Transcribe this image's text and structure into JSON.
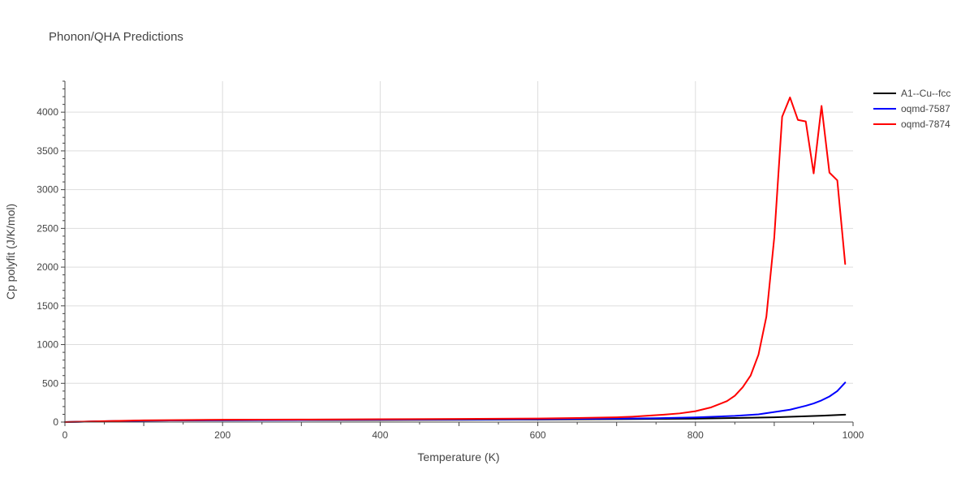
{
  "chart_data": {
    "type": "line",
    "title": "Phonon/QHA Predictions",
    "xlabel": "Temperature (K)",
    "ylabel": "Cp polyfit (J/K/mol)",
    "xlim": [
      0,
      1000
    ],
    "ylim": [
      0,
      4400
    ],
    "x_ticks": [
      0,
      200,
      400,
      600,
      800,
      1000
    ],
    "y_ticks": [
      0,
      500,
      1000,
      1500,
      2000,
      2500,
      3000,
      3500,
      4000
    ],
    "grid": true,
    "legend_position": "top-right",
    "series": [
      {
        "name": "A1--Cu--fcc",
        "color": "#000000",
        "x": [
          0,
          50,
          100,
          150,
          200,
          300,
          400,
          500,
          600,
          700,
          800,
          850,
          900,
          950,
          990
        ],
        "y": [
          0,
          10,
          18,
          22,
          24,
          26,
          28,
          30,
          33,
          38,
          45,
          52,
          62,
          78,
          95
        ]
      },
      {
        "name": "oqmd-7587",
        "color": "#0000ff",
        "x": [
          0,
          50,
          100,
          150,
          200,
          300,
          400,
          500,
          600,
          700,
          750,
          800,
          850,
          880,
          900,
          920,
          940,
          950,
          960,
          970,
          980,
          990
        ],
        "y": [
          0,
          10,
          18,
          22,
          25,
          28,
          31,
          34,
          38,
          44,
          50,
          60,
          80,
          100,
          130,
          160,
          210,
          240,
          280,
          330,
          400,
          510
        ]
      },
      {
        "name": "oqmd-7874",
        "color": "#ff0000",
        "x": [
          0,
          50,
          100,
          150,
          200,
          300,
          400,
          500,
          600,
          650,
          700,
          720,
          740,
          760,
          780,
          800,
          820,
          840,
          850,
          860,
          870,
          880,
          890,
          900,
          910,
          920,
          930,
          940,
          950,
          960,
          970,
          980,
          990
        ],
        "y": [
          0,
          12,
          22,
          26,
          30,
          33,
          36,
          40,
          46,
          52,
          62,
          70,
          82,
          96,
          112,
          140,
          190,
          270,
          340,
          450,
          600,
          870,
          1360,
          2380,
          3940,
          4190,
          3900,
          3880,
          3210,
          4080,
          3220,
          3120,
          2040
        ]
      }
    ]
  }
}
